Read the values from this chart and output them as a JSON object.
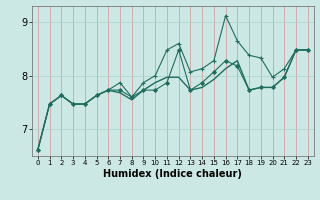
{
  "xlabel": "Humidex (Indice chaleur)",
  "bg_color": "#cce8e4",
  "line_color": "#1e6e5e",
  "x_values": [
    0,
    1,
    2,
    3,
    4,
    5,
    6,
    7,
    8,
    9,
    10,
    11,
    12,
    13,
    14,
    15,
    16,
    17,
    18,
    19,
    20,
    21,
    22,
    23
  ],
  "line_jagged": [
    6.62,
    7.47,
    7.63,
    7.47,
    7.47,
    7.63,
    7.73,
    7.87,
    7.6,
    7.87,
    8.0,
    8.48,
    8.6,
    8.07,
    8.13,
    8.28,
    9.12,
    8.65,
    8.38,
    8.33,
    7.97,
    8.13,
    8.48,
    8.48
  ],
  "line_smooth": [
    6.62,
    7.47,
    7.63,
    7.47,
    7.47,
    7.63,
    7.73,
    7.73,
    7.6,
    7.73,
    7.73,
    7.87,
    8.48,
    7.73,
    7.87,
    8.07,
    8.28,
    8.18,
    7.73,
    7.78,
    7.78,
    7.97,
    8.48,
    8.48
  ],
  "line_trend": [
    6.62,
    7.47,
    7.63,
    7.47,
    7.47,
    7.63,
    7.73,
    7.68,
    7.55,
    7.73,
    7.87,
    7.97,
    7.97,
    7.73,
    7.78,
    7.93,
    8.13,
    8.28,
    7.73,
    7.78,
    7.78,
    7.97,
    8.48,
    8.48
  ],
  "ylim": [
    6.5,
    9.3
  ],
  "xlim": [
    -0.5,
    23.5
  ],
  "yticks": [
    7,
    8,
    9
  ],
  "xticks": [
    0,
    1,
    2,
    3,
    4,
    5,
    6,
    7,
    8,
    9,
    10,
    11,
    12,
    13,
    14,
    15,
    16,
    17,
    18,
    19,
    20,
    21,
    22,
    23
  ],
  "grid_x_color": "#d4a0a0",
  "grid_y_color": "#b0d4ce",
  "xlabel_fontsize": 7,
  "tick_fontsize_x": 5,
  "tick_fontsize_y": 7
}
